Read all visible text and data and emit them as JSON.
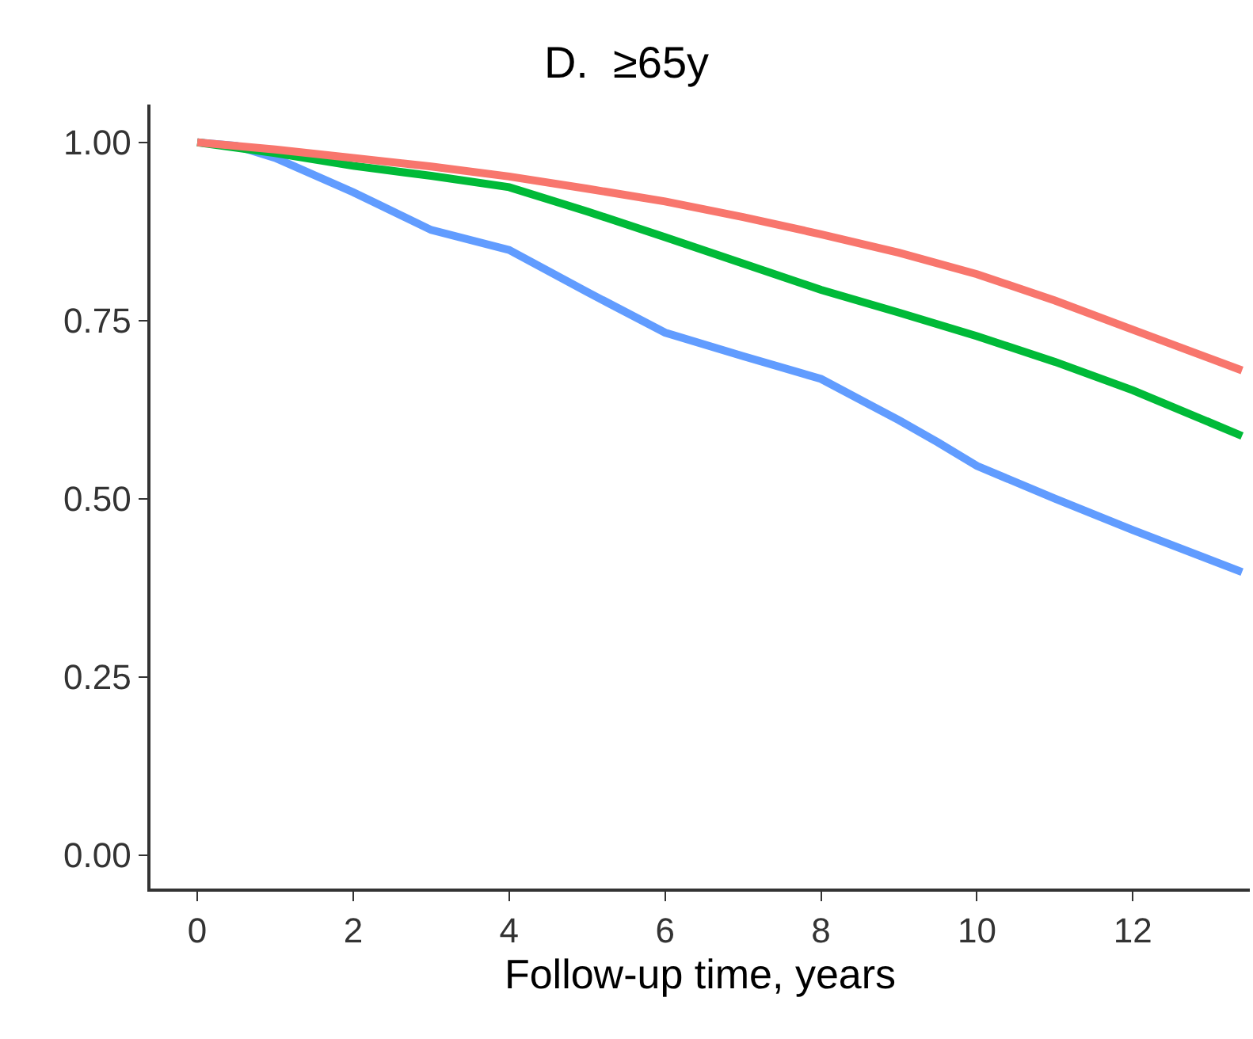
{
  "chart_data": {
    "type": "line",
    "title": "D.  ≥65y",
    "xlabel": "Follow-up time, years",
    "xlim": [
      -0.6,
      13.5
    ],
    "xticks": [
      0,
      2,
      4,
      6,
      8,
      10,
      12
    ],
    "ylim": [
      -0.047,
      1.053
    ],
    "yticks": [
      {
        "value": 0,
        "label": "0.00"
      },
      {
        "value": 0.25,
        "label": "0.25"
      },
      {
        "value": 0.5,
        "label": "0.50"
      },
      {
        "value": 0.75,
        "label": "0.75"
      },
      {
        "value": 1,
        "label": "1.00"
      }
    ],
    "marker": "none",
    "line_style": "solid",
    "series": [
      {
        "color": "#f8766d",
        "x": [
          0,
          1,
          2,
          3,
          4,
          5,
          6,
          7,
          8,
          9,
          10,
          11,
          12,
          13.4
        ],
        "values": [
          1.0,
          0.99,
          0.978,
          0.966,
          0.952,
          0.935,
          0.917,
          0.895,
          0.871,
          0.845,
          0.815,
          0.778,
          0.737,
          0.68
        ]
      },
      {
        "color": "#00ba38",
        "x": [
          0,
          1,
          2,
          3,
          4,
          5,
          6,
          7,
          8,
          9,
          10,
          11,
          12,
          13.4
        ],
        "values": [
          1.0,
          0.985,
          0.967,
          0.953,
          0.937,
          0.903,
          0.867,
          0.83,
          0.793,
          0.761,
          0.728,
          0.692,
          0.652,
          0.588
        ]
      },
      {
        "color": "#619cff",
        "x": [
          0,
          0.5,
          1,
          2,
          3,
          4,
          5,
          6,
          7,
          8,
          9,
          9.5,
          10,
          11,
          12,
          13.4
        ],
        "values": [
          1.0,
          0.995,
          0.978,
          0.93,
          0.877,
          0.849,
          0.79,
          0.733,
          0.7,
          0.668,
          0.61,
          0.579,
          0.546,
          0.5,
          0.456,
          0.397
        ]
      }
    ]
  }
}
